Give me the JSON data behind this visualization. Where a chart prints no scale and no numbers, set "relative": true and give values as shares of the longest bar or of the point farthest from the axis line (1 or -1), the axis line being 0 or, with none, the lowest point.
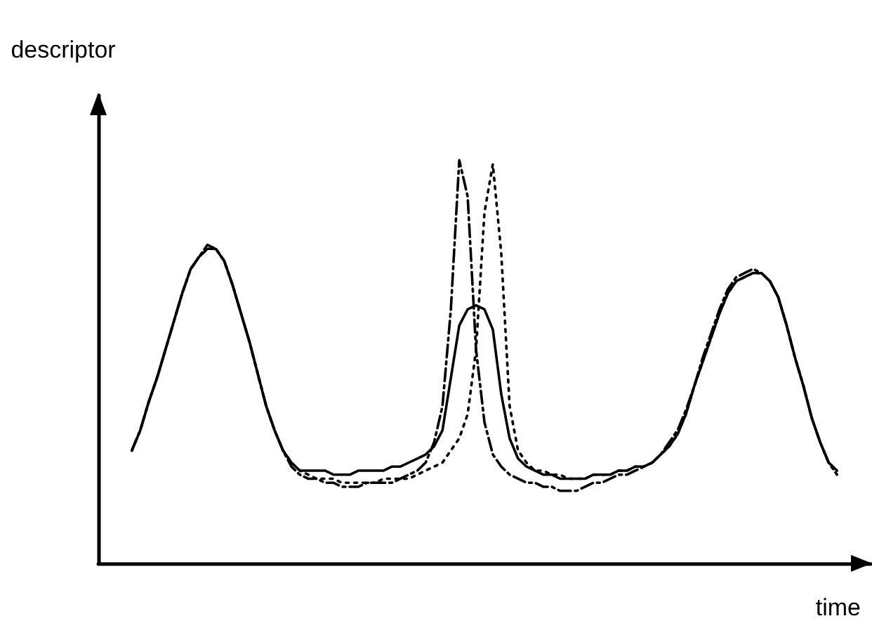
{
  "chart_data": {
    "type": "line",
    "relative": true,
    "xlabel": "time",
    "ylabel": "descriptor",
    "grid": false,
    "categories": [
      null,
      null,
      null,
      null,
      null,
      null,
      null,
      null,
      null,
      null,
      null,
      null,
      null,
      null,
      null,
      null,
      null,
      null,
      null,
      null,
      null,
      null,
      null,
      null,
      null,
      null,
      null,
      null,
      null,
      null,
      null,
      null,
      null,
      null,
      null,
      null,
      null,
      null,
      null,
      null,
      null,
      null,
      null,
      null,
      null,
      null,
      null,
      null,
      null,
      null,
      null,
      null,
      null,
      null,
      null,
      null,
      null,
      null,
      null,
      null,
      null,
      null,
      null,
      null,
      null,
      null,
      null,
      null,
      null,
      null,
      null,
      null,
      null,
      null,
      null,
      null,
      null,
      null,
      null,
      null,
      null,
      null,
      null,
      null,
      null,
      null,
      null,
      null,
      null,
      null,
      null,
      null,
      null
    ],
    "series": [
      {
        "color": "#000000",
        "line_style": "solid",
        "values": [
          null,
          null,
          null,
          null,
          0.28,
          0.33,
          0.4,
          0.46,
          0.53,
          0.6,
          0.67,
          0.73,
          0.76,
          0.78,
          0.78,
          0.75,
          0.69,
          0.62,
          0.55,
          0.47,
          0.39,
          0.33,
          0.28,
          0.25,
          0.23,
          0.23,
          0.23,
          0.23,
          0.22,
          0.22,
          0.22,
          0.23,
          0.23,
          0.23,
          0.23,
          0.24,
          0.24,
          0.25,
          0.26,
          0.27,
          0.29,
          0.33,
          0.46,
          0.59,
          0.63,
          0.64,
          0.63,
          0.58,
          0.42,
          0.31,
          0.26,
          0.24,
          0.23,
          0.22,
          0.22,
          0.21,
          0.21,
          0.21,
          0.21,
          0.22,
          0.22,
          0.22,
          0.23,
          0.23,
          0.24,
          0.24,
          0.25,
          0.27,
          0.29,
          0.32,
          0.37,
          0.44,
          0.5,
          0.56,
          0.62,
          0.67,
          0.7,
          0.71,
          0.72,
          0.72,
          0.7,
          0.66,
          0.59,
          0.51,
          0.44,
          0.36,
          0.3,
          0.25,
          0.23,
          null,
          null,
          null,
          null
        ]
      },
      {
        "color": "#000000",
        "line_style": "dashdot",
        "values": [
          null,
          null,
          null,
          null,
          0.28,
          0.33,
          0.4,
          0.46,
          0.53,
          0.6,
          0.67,
          0.73,
          0.76,
          0.79,
          0.78,
          0.75,
          0.69,
          0.62,
          0.55,
          0.47,
          0.39,
          0.33,
          0.28,
          0.24,
          0.22,
          0.21,
          0.21,
          0.2,
          0.2,
          0.19,
          0.19,
          0.19,
          0.2,
          0.2,
          0.2,
          0.2,
          0.21,
          0.22,
          0.23,
          0.25,
          0.3,
          0.39,
          0.63,
          1.0,
          0.91,
          0.53,
          0.35,
          0.27,
          0.24,
          0.22,
          0.21,
          0.2,
          0.2,
          0.19,
          0.19,
          0.18,
          0.18,
          0.18,
          0.19,
          0.2,
          0.2,
          0.21,
          0.22,
          0.22,
          0.23,
          0.24,
          0.25,
          0.27,
          0.3,
          0.33,
          0.38,
          0.44,
          0.51,
          0.57,
          0.63,
          0.68,
          0.71,
          0.72,
          0.73,
          0.72,
          0.7,
          0.66,
          0.59,
          0.51,
          0.44,
          0.36,
          0.3,
          0.25,
          0.22,
          null,
          null,
          null,
          null
        ]
      },
      {
        "color": "#000000",
        "line_style": "dotted",
        "values": [
          null,
          null,
          null,
          null,
          0.28,
          0.33,
          0.4,
          0.46,
          0.53,
          0.6,
          0.67,
          0.73,
          0.76,
          0.78,
          0.78,
          0.75,
          0.69,
          0.62,
          0.55,
          0.47,
          0.39,
          0.33,
          0.28,
          0.25,
          0.23,
          0.22,
          0.21,
          0.21,
          0.21,
          0.2,
          0.2,
          0.2,
          0.2,
          0.2,
          0.21,
          0.21,
          0.21,
          0.21,
          0.22,
          0.23,
          0.24,
          0.25,
          0.28,
          0.31,
          0.37,
          0.53,
          0.87,
          0.99,
          0.77,
          0.39,
          0.28,
          0.25,
          0.23,
          0.23,
          0.22,
          0.22,
          0.21,
          0.21,
          0.21,
          0.22,
          0.22,
          0.22,
          0.23,
          0.23,
          0.24,
          0.24,
          0.25,
          0.27,
          0.29,
          0.32,
          0.37,
          0.44,
          0.5,
          0.56,
          0.62,
          0.67,
          0.7,
          0.71,
          0.72,
          0.72,
          0.7,
          0.66,
          0.59,
          0.51,
          0.44,
          0.36,
          0.3,
          0.25,
          0.23,
          null,
          null,
          null,
          null
        ]
      }
    ]
  }
}
